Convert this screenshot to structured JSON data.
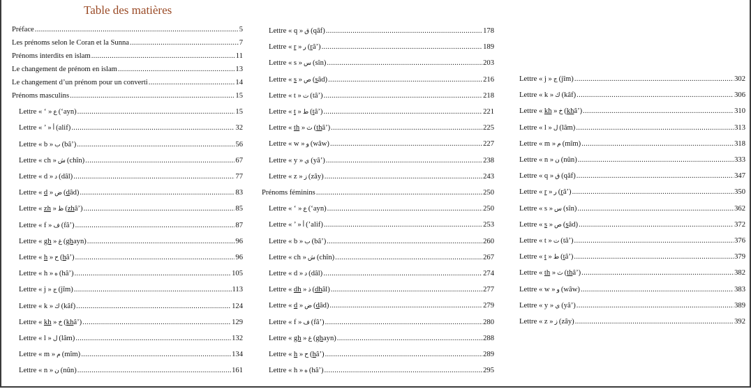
{
  "title": "Table des matières",
  "columns": [
    {
      "rows": [
        {
          "type": "section",
          "text": "Préface",
          "page": "5"
        },
        {
          "type": "section",
          "text": "Les prénoms selon le Coran et la Sunna ",
          "page": "7"
        },
        {
          "type": "section",
          "text": "Prénoms interdits en islam ",
          "page": "11"
        },
        {
          "type": "section",
          "text": "Le changement de prénom en islam",
          "page": "13"
        },
        {
          "type": "section",
          "text": "Le changement d’un prénom pour un converti ",
          "page": "14"
        },
        {
          "type": "section",
          "text": "Prénoms masculins",
          "page": "15"
        },
        {
          "type": "letter",
          "letter": "‘",
          "ul": false,
          "arabic": "ع",
          "name_u": "",
          "name": "‘ayn",
          "page": "15"
        },
        {
          "type": "letter",
          "letter": "’",
          "ul": false,
          "arabic": "أ",
          "name_u": "",
          "name": "alif",
          "page": "32"
        },
        {
          "type": "letter",
          "letter": "b",
          "ul": false,
          "arabic": "ب",
          "name_u": "",
          "name": "bâ’",
          "page": "56"
        },
        {
          "type": "letter",
          "letter": "ch",
          "ul": false,
          "arabic": "ش",
          "name_u": "",
          "name": "chîn",
          "page": "67"
        },
        {
          "type": "letter",
          "letter": "d",
          "ul": false,
          "arabic": "د",
          "name_u": "",
          "name": "dâl",
          "page": "77"
        },
        {
          "type": "letter",
          "letter": "d",
          "ul": true,
          "arabic": "ض",
          "name_u": "d",
          "name": "âd",
          "page": "83"
        },
        {
          "type": "letter",
          "letter": "zh",
          "ul": true,
          "arabic": "ظ",
          "name_u": "zh",
          "name": "â’",
          "page": "85"
        },
        {
          "type": "letter",
          "letter": "f",
          "ul": false,
          "arabic": "ف",
          "name_u": "",
          "name": "fâ’",
          "page": "87"
        },
        {
          "type": "letter",
          "letter": "gh",
          "ul": true,
          "arabic": "غ",
          "name_u": "gh",
          "name": "ayn",
          "page": "96"
        },
        {
          "type": "letter",
          "letter": "h",
          "ul": true,
          "arabic": "ح",
          "name_u": "h",
          "name": "â’",
          "page": "96"
        },
        {
          "type": "letter",
          "letter": "h",
          "ul": false,
          "arabic": "ه",
          "name_u": "",
          "name": "hâ’",
          "page": "105"
        },
        {
          "type": "letter",
          "letter": "j",
          "ul": false,
          "arabic": "ج",
          "name_u": "",
          "name": "jîm",
          "page": "113"
        },
        {
          "type": "letter",
          "letter": "k",
          "ul": false,
          "arabic": "ك",
          "name_u": "",
          "name": "kâf",
          "page": "124"
        },
        {
          "type": "letter",
          "letter": "kh",
          "ul": true,
          "arabic": "خ",
          "name_u": "kh",
          "name": "â’",
          "page": "129"
        },
        {
          "type": "letter",
          "letter": "l",
          "ul": false,
          "arabic": "ل",
          "name_u": "",
          "name": "lâm",
          "page": "132"
        },
        {
          "type": "letter",
          "letter": "m",
          "ul": false,
          "arabic": "م",
          "name_u": "",
          "name": "mîm",
          "page": "134"
        },
        {
          "type": "letter",
          "letter": "n",
          "ul": false,
          "arabic": "ن",
          "name_u": "",
          "name": "nûn",
          "page": "161"
        }
      ]
    },
    {
      "rows": [
        {
          "type": "letter",
          "letter": "q",
          "ul": false,
          "arabic": "ق",
          "name_u": "",
          "name": "qâf",
          "page": "178"
        },
        {
          "type": "letter",
          "letter": "r",
          "ul": true,
          "arabic": "ر",
          "name_u": "r",
          "name": "â’",
          "page": "189"
        },
        {
          "type": "letter",
          "letter": "s",
          "ul": false,
          "arabic": "س",
          "name_u": "",
          "name": "sîn",
          "page": "203"
        },
        {
          "type": "letter",
          "letter": "s",
          "ul": true,
          "arabic": "ص",
          "name_u": "s",
          "name": "âd",
          "page": "216"
        },
        {
          "type": "letter",
          "letter": "t",
          "ul": false,
          "arabic": "ت",
          "name_u": "",
          "name": "tâ’",
          "page": "218"
        },
        {
          "type": "letter",
          "letter": "t",
          "ul": true,
          "arabic": "ط",
          "name_u": "t",
          "name": "â’",
          "page": "221"
        },
        {
          "type": "letter",
          "letter": "th",
          "ul": true,
          "arabic": "ث",
          "name_u": "th",
          "name": "â’",
          "page": "225"
        },
        {
          "type": "letter",
          "letter": "w",
          "ul": false,
          "arabic": "و",
          "name_u": "",
          "name": "wâw",
          "page": "227"
        },
        {
          "type": "letter",
          "letter": "y",
          "ul": false,
          "arabic": "ي",
          "name_u": "",
          "name": "yâ’",
          "page": "238"
        },
        {
          "type": "letter",
          "letter": "z",
          "ul": false,
          "arabic": "ز",
          "name_u": "",
          "name": "zây",
          "page": "243"
        },
        {
          "type": "section",
          "text": "Prénoms féminins",
          "page": "250"
        },
        {
          "type": "letter",
          "letter": "‘",
          "ul": false,
          "arabic": "ع",
          "name_u": "",
          "name": "‘ayn",
          "page": "250"
        },
        {
          "type": "letter",
          "letter": "’",
          "ul": false,
          "arabic": "أ",
          "name_u": "",
          "name": "’alif",
          "page": "253"
        },
        {
          "type": "letter",
          "letter": "b",
          "ul": false,
          "arabic": "ب",
          "name_u": "",
          "name": "bâ’",
          "page": "260"
        },
        {
          "type": "letter",
          "letter": "ch",
          "ul": false,
          "arabic": "ش",
          "name_u": "",
          "name": "chîn",
          "page": "267"
        },
        {
          "type": "letter",
          "letter": "d",
          "ul": false,
          "arabic": "د",
          "name_u": "",
          "name": "dâl",
          "page": "274"
        },
        {
          "type": "letter",
          "letter": "dh",
          "ul": true,
          "arabic": "ذ",
          "name_u": "dh",
          "name": "âl",
          "page": "277"
        },
        {
          "type": "letter",
          "letter": "d",
          "ul": true,
          "arabic": "ض",
          "name_u": "d",
          "name": "âd",
          "page": "279"
        },
        {
          "type": "letter",
          "letter": "f",
          "ul": false,
          "arabic": "ف",
          "name_u": "",
          "name": "fâ’",
          "page": "280"
        },
        {
          "type": "letter",
          "letter": "gh",
          "ul": true,
          "arabic": "غ",
          "name_u": "gh",
          "name": "ayn",
          "page": "288"
        },
        {
          "type": "letter",
          "letter": "h",
          "ul": true,
          "arabic": "ح",
          "name_u": "h",
          "name": "â’",
          "page": "289"
        },
        {
          "type": "letter",
          "letter": "h",
          "ul": false,
          "arabic": "ه",
          "name_u": "",
          "name": "hâ’",
          "page": "295"
        }
      ]
    },
    {
      "rows": [
        {
          "type": "letter",
          "letter": "j",
          "ul": false,
          "arabic": "ج",
          "name_u": "",
          "name": "jîm",
          "page": "302"
        },
        {
          "type": "letter",
          "letter": "k",
          "ul": false,
          "arabic": "ك",
          "name_u": "",
          "name": "kâf",
          "page": "306"
        },
        {
          "type": "letter",
          "letter": "kh",
          "ul": true,
          "arabic": "خ",
          "name_u": "kh",
          "name": "â’",
          "page": "310"
        },
        {
          "type": "letter",
          "letter": "l",
          "ul": false,
          "arabic": "ل",
          "name_u": "",
          "name": "lâm",
          "page": "313"
        },
        {
          "type": "letter",
          "letter": "m",
          "ul": false,
          "arabic": "م",
          "name_u": "",
          "name": "mîm",
          "page": "318"
        },
        {
          "type": "letter",
          "letter": "n",
          "ul": false,
          "arabic": "ن",
          "name_u": "",
          "name": "nûn",
          "page": "333"
        },
        {
          "type": "letter",
          "letter": "q",
          "ul": false,
          "arabic": "ق",
          "name_u": "",
          "name": "qâf",
          "page": "347"
        },
        {
          "type": "letter",
          "letter": "r",
          "ul": true,
          "arabic": "ر",
          "name_u": "r",
          "name": "â’",
          "page": "350"
        },
        {
          "type": "letter",
          "letter": "s",
          "ul": false,
          "arabic": "س",
          "name_u": "",
          "name": "sîn",
          "page": "362"
        },
        {
          "type": "letter",
          "letter": "s",
          "ul": true,
          "arabic": "ص",
          "name_u": "s",
          "name": "âd",
          "page": "372"
        },
        {
          "type": "letter",
          "letter": "t",
          "ul": false,
          "arabic": "ت",
          "name_u": "",
          "name": "tâ’",
          "page": "376"
        },
        {
          "type": "letter",
          "letter": "t",
          "ul": true,
          "arabic": "ط",
          "name_u": "t",
          "name": "â’",
          "page": "379"
        },
        {
          "type": "letter",
          "letter": "th",
          "ul": true,
          "arabic": "ث",
          "name_u": "th",
          "name": "â’",
          "page": "382"
        },
        {
          "type": "letter",
          "letter": "w",
          "ul": false,
          "arabic": "و",
          "name_u": "",
          "name": "wâw",
          "page": "383"
        },
        {
          "type": "letter",
          "letter": "y",
          "ul": false,
          "arabic": "ي",
          "name_u": "",
          "name": "yâ’",
          "page": "389"
        },
        {
          "type": "letter",
          "letter": "z",
          "ul": false,
          "arabic": "ز",
          "name_u": "",
          "name": "zây",
          "page": "392"
        }
      ]
    }
  ],
  "labels": {
    "lettre": "Lettre",
    "open_quote": "«",
    "close_quote": "»"
  }
}
